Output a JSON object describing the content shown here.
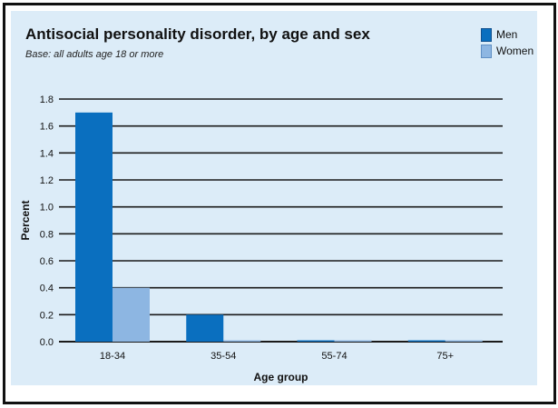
{
  "chart_data": {
    "type": "bar",
    "title": "Antisocial personality disorder, by age and sex",
    "subtitle": "Base: all adults age 18 or more",
    "xlabel": "Age group",
    "ylabel": "Percent",
    "categories": [
      "18-34",
      "35-54",
      "55-74",
      "75+"
    ],
    "series": [
      {
        "name": "Men",
        "values": [
          1.7,
          0.2,
          0.0,
          0.0
        ]
      },
      {
        "name": "Women",
        "values": [
          0.4,
          0.0,
          0.0,
          0.0
        ]
      }
    ],
    "ylim": [
      0,
      1.8
    ],
    "yticks": [
      "0.0",
      "0.2",
      "0.4",
      "0.6",
      "0.8",
      "1.0",
      "1.2",
      "1.4",
      "1.6",
      "1.8"
    ],
    "grid": true,
    "legend_position": "top-right",
    "colors": {
      "Men": "#0a6fbf",
      "Women": "#8db6e2"
    }
  }
}
